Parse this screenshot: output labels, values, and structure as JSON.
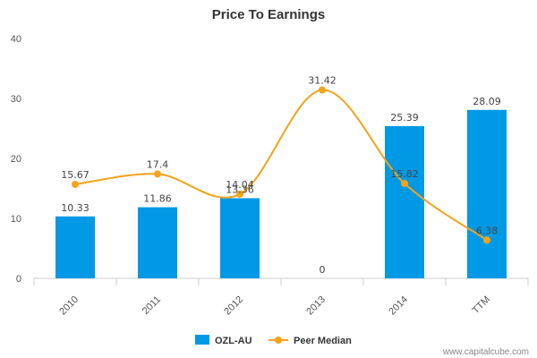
{
  "chart_data": {
    "type": "bar",
    "title": "Price To Earnings",
    "categories": [
      "2010",
      "2011",
      "2012",
      "2013",
      "2014",
      "TTM"
    ],
    "ylim": [
      0,
      40
    ],
    "yticks": [
      0,
      10,
      20,
      30,
      40
    ],
    "grid": false,
    "legend_position": "bottom",
    "series": [
      {
        "name": "OZL-AU",
        "type": "bar",
        "color": "#0099e5",
        "values": [
          10.33,
          11.86,
          13.36,
          0,
          25.39,
          28.09
        ],
        "labels": [
          "10.33",
          "11.86",
          "13.36",
          "0",
          "25.39",
          "28.09"
        ]
      },
      {
        "name": "Peer Median",
        "type": "line",
        "color": "#f5a31a",
        "values": [
          15.67,
          17.4,
          14.04,
          31.42,
          15.82,
          6.38
        ],
        "labels": [
          "15.67",
          "17.4",
          "14.04",
          "31.42",
          "15.82",
          "6.38"
        ]
      }
    ]
  },
  "watermark": "www.capitalcube.com"
}
